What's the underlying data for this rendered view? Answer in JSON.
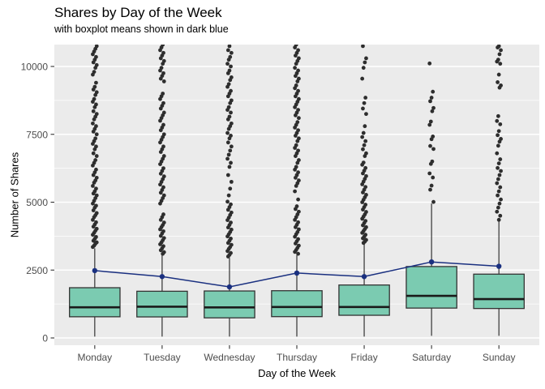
{
  "chart_data": {
    "type": "boxplot",
    "title": "Shares by Day of the Week",
    "subtitle": "with boxplot means shown in dark blue",
    "xlabel": "Day of the Week",
    "ylabel": "Number of Shares",
    "legend_position": "none",
    "grid": true,
    "y_ticks": [
      0,
      2500,
      5000,
      7500,
      10000
    ],
    "y_minor_ticks": [
      1250,
      3750,
      6250,
      8750
    ],
    "ylim": [
      -280,
      10810
    ],
    "categories": [
      "Monday",
      "Tuesday",
      "Wednesday",
      "Thursday",
      "Friday",
      "Saturday",
      "Sunday"
    ],
    "colors": {
      "panel_background": "#EBEBEB",
      "gridline": "#FFFFFF",
      "box_fill": "#7BCBB1",
      "box_border": "#333333",
      "median_line": "#1A1A1A",
      "outlier_point": "#2E2E2E",
      "mean_line": "#1A3080",
      "tick_label": "#4D4D4D",
      "axis_tick": "#333333"
    },
    "boxes": [
      {
        "day": "Monday",
        "whisker_low": 50,
        "q1": 780,
        "median": 1130,
        "q3": 1850,
        "whisker_high": 3300,
        "mean": 2480
      },
      {
        "day": "Tuesday",
        "whisker_low": 50,
        "q1": 775,
        "median": 1150,
        "q3": 1720,
        "whisker_high": 3050,
        "mean": 2260
      },
      {
        "day": "Wednesday",
        "whisker_low": 50,
        "q1": 740,
        "median": 1125,
        "q3": 1730,
        "whisker_high": 2950,
        "mean": 1880
      },
      {
        "day": "Thursday",
        "whisker_low": 50,
        "q1": 785,
        "median": 1140,
        "q3": 1740,
        "whisker_high": 3050,
        "mean": 2390
      },
      {
        "day": "Friday",
        "whisker_low": 50,
        "q1": 835,
        "median": 1140,
        "q3": 1950,
        "whisker_high": 3450,
        "mean": 2260
      },
      {
        "day": "Saturday",
        "whisker_low": 80,
        "q1": 1100,
        "median": 1550,
        "q3": 2630,
        "whisker_high": 4950,
        "mean": 2800
      },
      {
        "day": "Sunday",
        "whisker_low": 80,
        "q1": 1085,
        "median": 1430,
        "q3": 2350,
        "whisker_high": 4300,
        "mean": 2640
      }
    ],
    "means": [
      2480,
      2260,
      1880,
      2390,
      2260,
      2800,
      2640
    ],
    "outliers": {
      "Monday": [
        3350,
        3400,
        3470,
        3520,
        3580,
        3650,
        3720,
        3800,
        3870,
        3950,
        4020,
        4100,
        4180,
        4260,
        4350,
        4450,
        4520,
        4600,
        4700,
        4800,
        4870,
        4950,
        5050,
        5150,
        5250,
        5320,
        5400,
        5500,
        5600,
        5720,
        5800,
        5900,
        6000,
        6100,
        6200,
        6350,
        6450,
        6550,
        6700,
        6800,
        6950,
        7050,
        7150,
        7250,
        7350,
        7500,
        7600,
        7700,
        7800,
        7900,
        8050,
        8150,
        8250,
        8350,
        8500,
        8600,
        8700,
        8800,
        8950,
        9050,
        9150,
        9250,
        9400,
        9700,
        9800,
        9950,
        10050,
        10150,
        10250,
        10350,
        10450,
        10550,
        10650,
        10750
      ],
      "Tuesday": [
        3100,
        3160,
        3230,
        3300,
        3380,
        3450,
        3520,
        3600,
        3680,
        3760,
        3850,
        3930,
        4000,
        4080,
        4160,
        4250,
        4350,
        4450,
        4550,
        4950,
        5050,
        5150,
        5250,
        5350,
        5450,
        5550,
        5650,
        5750,
        5850,
        5950,
        6050,
        6150,
        6250,
        6400,
        6500,
        6600,
        6700,
        6850,
        6950,
        7050,
        7200,
        7300,
        7400,
        7500,
        7650,
        7750,
        7850,
        8000,
        8100,
        8200,
        8300,
        8450,
        8550,
        8650,
        8800,
        8900,
        9000,
        9450,
        9550,
        9650,
        9750,
        9850,
        9950,
        10100,
        10200,
        10300,
        10400,
        10500,
        10600,
        10700,
        10800
      ],
      "Wednesday": [
        3000,
        3060,
        3130,
        3200,
        3280,
        3350,
        3430,
        3500,
        3580,
        3660,
        3740,
        3820,
        3900,
        3990,
        4070,
        4160,
        4250,
        4340,
        4430,
        4530,
        4620,
        4720,
        4820,
        4920,
        5020,
        5250,
        5500,
        5750,
        6000,
        6300,
        6450,
        6600,
        6750,
        6900,
        7050,
        7200,
        7350,
        7450,
        7550,
        7700,
        7800,
        7900,
        8050,
        8150,
        8300,
        8400,
        8500,
        8650,
        8750,
        8900,
        9000,
        9100,
        9250,
        9350,
        9500,
        9600,
        9750,
        9850,
        10000,
        10100,
        10250,
        10350,
        10500,
        10600,
        10750
      ],
      "Thursday": [
        3100,
        3170,
        3240,
        3320,
        3400,
        3480,
        3560,
        3640,
        3730,
        3820,
        3900,
        4000,
        4080,
        4170,
        4260,
        4350,
        4450,
        4550,
        4650,
        4750,
        4850,
        5100,
        5400,
        5600,
        5700,
        5800,
        5900,
        6000,
        6100,
        6200,
        6300,
        6450,
        6550,
        6700,
        6800,
        6900,
        7000,
        7100,
        7250,
        7350,
        7450,
        7550,
        7650,
        7750,
        7850,
        7950,
        8100,
        8200,
        8300,
        8400,
        8500,
        8600,
        8700,
        8800,
        8900,
        9000,
        9100,
        9200,
        9300,
        9450,
        9550,
        9650,
        9750,
        9850,
        9950,
        10100,
        10200,
        10300,
        10400,
        10500,
        10600,
        10700,
        10800
      ],
      "Friday": [
        3500,
        3550,
        3610,
        3670,
        3730,
        3800,
        3870,
        3940,
        4010,
        4080,
        4150,
        4230,
        4310,
        4390,
        4470,
        4550,
        4640,
        4730,
        4820,
        4910,
        5000,
        5090,
        5180,
        5270,
        5360,
        5460,
        5560,
        5660,
        5760,
        5860,
        5960,
        6060,
        6160,
        6260,
        6380,
        6460,
        6700,
        6800,
        6950,
        7100,
        7250,
        7400,
        7550,
        7800,
        8250,
        8450,
        8650,
        8850,
        9550,
        9950,
        10150,
        10300,
        10750
      ],
      "Saturday": [
        5010,
        5460,
        5610,
        5910,
        6060,
        6410,
        6500,
        6960,
        7070,
        7320,
        7420,
        7850,
        7970,
        8350,
        8470,
        8720,
        8850,
        9070,
        10110
      ],
      "Sunday": [
        4350,
        4500,
        4650,
        4800,
        4950,
        5100,
        5250,
        5400,
        5550,
        5700,
        5850,
        6000,
        6150,
        6260,
        6430,
        6580,
        6800,
        7080,
        7230,
        7330,
        7470,
        7620,
        7870,
        7990,
        8170,
        9220,
        9300,
        9420,
        9700,
        10100,
        10180,
        10250,
        10450,
        10600,
        10700,
        10750
      ]
    }
  }
}
